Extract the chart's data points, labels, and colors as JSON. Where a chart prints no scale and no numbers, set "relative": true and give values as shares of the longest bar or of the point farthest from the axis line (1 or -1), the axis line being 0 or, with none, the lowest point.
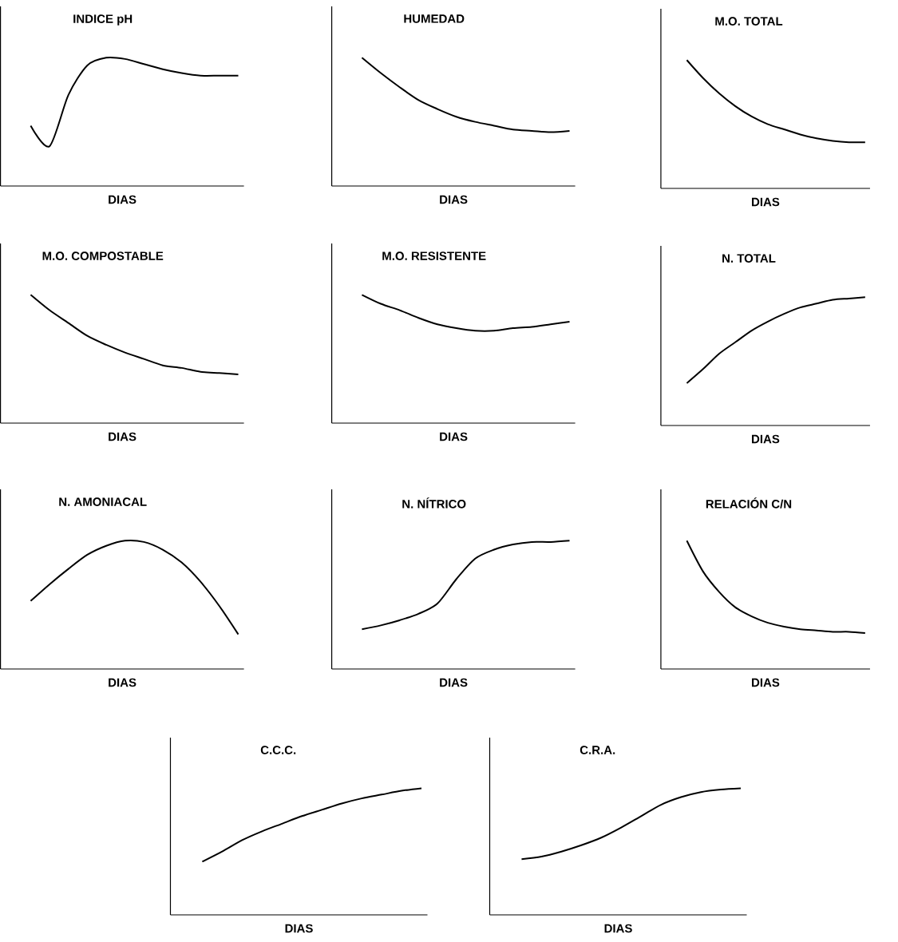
{
  "chart_data": [
    {
      "type": "line",
      "title": "INDICE pH",
      "xlabel": "DIAS",
      "relative": true,
      "tick_labels": false,
      "color": "#000000",
      "categories": [
        null,
        null,
        null,
        null,
        null,
        null,
        null,
        null,
        null,
        null,
        null,
        null
      ],
      "values": [
        0.47,
        0.31,
        0.71,
        0.94,
        1,
        0.99,
        0.95,
        0.91,
        0.88,
        0.86,
        0.86,
        0.86
      ]
    },
    {
      "type": "line",
      "title": "HUMEDAD",
      "xlabel": "DIAS",
      "relative": true,
      "tick_labels": false,
      "color": "#000000",
      "categories": [
        null,
        null,
        null,
        null,
        null,
        null,
        null,
        null,
        null,
        null,
        null,
        null
      ],
      "values": [
        1,
        0.88,
        0.77,
        0.67,
        0.6,
        0.54,
        0.5,
        0.47,
        0.44,
        0.43,
        0.42,
        0.43
      ]
    },
    {
      "type": "line",
      "title": "M.O. TOTAL",
      "xlabel": "DIAS",
      "relative": true,
      "tick_labels": false,
      "color": "#000000",
      "categories": [
        null,
        null,
        null,
        null,
        null,
        null,
        null,
        null,
        null,
        null,
        null,
        null
      ],
      "values": [
        1,
        0.86,
        0.74,
        0.64,
        0.56,
        0.5,
        0.46,
        0.42,
        0.39,
        0.37,
        0.36,
        0.36
      ]
    },
    {
      "type": "line",
      "title": "M.O. COMPOSTABLE",
      "xlabel": "DIAS",
      "relative": true,
      "tick_labels": false,
      "color": "#000000",
      "categories": [
        null,
        null,
        null,
        null,
        null,
        null,
        null,
        null,
        null,
        null,
        null,
        null
      ],
      "values": [
        1,
        0.88,
        0.78,
        0.68,
        0.61,
        0.55,
        0.5,
        0.45,
        0.43,
        0.4,
        0.39,
        0.38
      ]
    },
    {
      "type": "line",
      "title": "M.O. RESISTENTE",
      "xlabel": "DIAS",
      "relative": true,
      "tick_labels": false,
      "color": "#000000",
      "categories": [
        null,
        null,
        null,
        null,
        null,
        null,
        null,
        null,
        null,
        null,
        null,
        null
      ],
      "values": [
        1,
        0.93,
        0.88,
        0.82,
        0.77,
        0.74,
        0.72,
        0.72,
        0.74,
        0.75,
        0.77,
        0.79
      ]
    },
    {
      "type": "line",
      "title": "N. TOTAL",
      "xlabel": "DIAS",
      "relative": true,
      "tick_labels": false,
      "color": "#000000",
      "categories": [
        null,
        null,
        null,
        null,
        null,
        null,
        null,
        null,
        null,
        null,
        null,
        null
      ],
      "values": [
        0.33,
        0.44,
        0.56,
        0.65,
        0.74,
        0.81,
        0.87,
        0.92,
        0.95,
        0.98,
        0.99,
        1
      ]
    },
    {
      "type": "line",
      "title": "N. AMONIACAL",
      "xlabel": "DIAS",
      "relative": true,
      "tick_labels": false,
      "color": "#000000",
      "categories": [
        null,
        null,
        null,
        null,
        null,
        null,
        null,
        null,
        null,
        null,
        null,
        null
      ],
      "values": [
        0.53,
        0.66,
        0.78,
        0.89,
        0.96,
        1,
        0.99,
        0.93,
        0.83,
        0.68,
        0.49,
        0.27
      ]
    },
    {
      "type": "line",
      "title": "N. NÍTRICO",
      "xlabel": "DIAS",
      "relative": true,
      "tick_labels": false,
      "color": "#000000",
      "categories": [
        null,
        null,
        null,
        null,
        null,
        null,
        null,
        null,
        null,
        null,
        null,
        null
      ],
      "values": [
        0.31,
        0.34,
        0.38,
        0.43,
        0.51,
        0.7,
        0.86,
        0.93,
        0.97,
        0.99,
        0.99,
        1
      ]
    },
    {
      "type": "line",
      "title": "RELACIÓN C/N",
      "xlabel": "DIAS",
      "relative": true,
      "tick_labels": false,
      "color": "#000000",
      "categories": [
        null,
        null,
        null,
        null,
        null,
        null,
        null,
        null,
        null,
        null,
        null,
        null
      ],
      "values": [
        1,
        0.76,
        0.6,
        0.48,
        0.41,
        0.36,
        0.33,
        0.31,
        0.3,
        0.29,
        0.29,
        0.28
      ]
    },
    {
      "type": "line",
      "title": "C.C.C.",
      "xlabel": "DIAS",
      "relative": true,
      "tick_labels": false,
      "color": "#000000",
      "categories": [
        null,
        null,
        null,
        null,
        null,
        null,
        null,
        null,
        null,
        null,
        null,
        null
      ],
      "values": [
        0.42,
        0.5,
        0.59,
        0.66,
        0.72,
        0.78,
        0.83,
        0.88,
        0.92,
        0.95,
        0.98,
        1
      ]
    },
    {
      "type": "line",
      "title": "C.R.A.",
      "xlabel": "DIAS",
      "relative": true,
      "tick_labels": false,
      "color": "#000000",
      "categories": [
        null,
        null,
        null,
        null,
        null,
        null,
        null,
        null,
        null,
        null,
        null,
        null
      ],
      "values": [
        0.44,
        0.46,
        0.5,
        0.55,
        0.61,
        0.69,
        0.78,
        0.87,
        0.93,
        0.97,
        0.99,
        1
      ]
    }
  ]
}
